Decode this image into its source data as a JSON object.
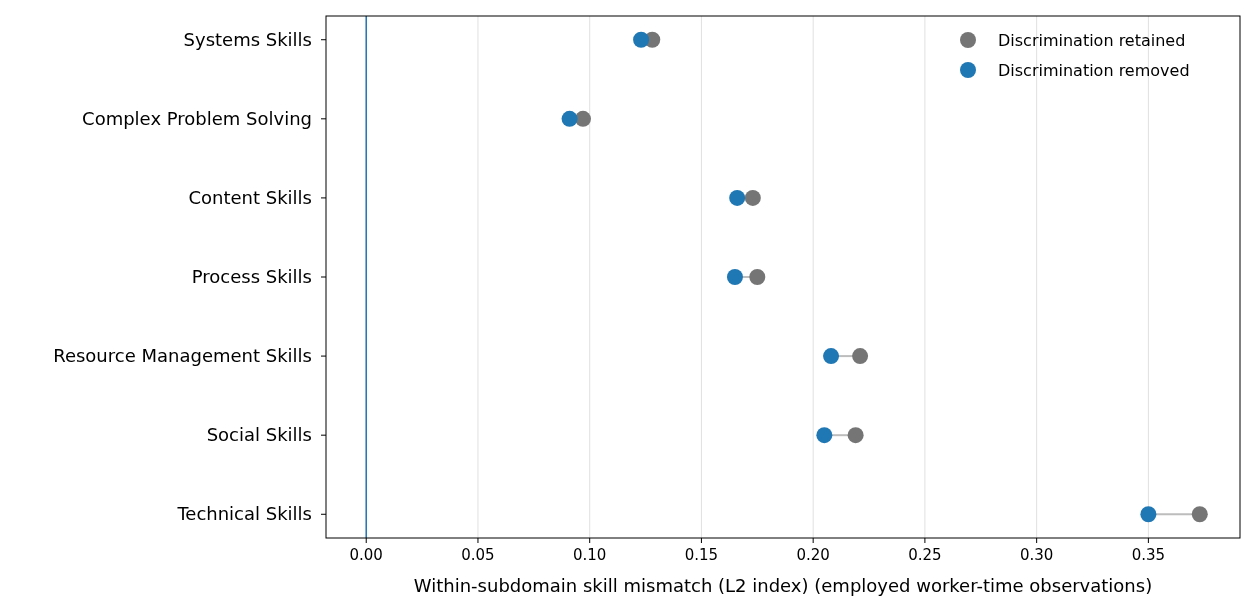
{
  "chart_data": {
    "type": "scatter",
    "orientation": "horizontal",
    "xlabel": "Within-subdomain skill mismatch (L2 index) (employed worker-time observations)",
    "categories": [
      "Systems Skills",
      "Complex Problem Solving",
      "Content Skills",
      "Process Skills",
      "Resource Management Skills",
      "Social Skills",
      "Technical Skills"
    ],
    "series": [
      {
        "name": "Discrimination retained",
        "color": "#757575",
        "values": [
          0.128,
          0.097,
          0.173,
          0.175,
          0.221,
          0.219,
          0.373
        ]
      },
      {
        "name": "Discrimination removed",
        "color": "#1f77b4",
        "values": [
          0.123,
          0.091,
          0.166,
          0.165,
          0.208,
          0.205,
          0.35
        ]
      }
    ],
    "xlim": [
      -0.018,
      0.391
    ],
    "xticks": [
      {
        "value": 0,
        "label": "0.00"
      },
      {
        "value": 0.05,
        "label": "0.05"
      },
      {
        "value": 0.1,
        "label": "0.10"
      },
      {
        "value": 0.15,
        "label": "0.15"
      },
      {
        "value": 0.2,
        "label": "0.20"
      },
      {
        "value": 0.25,
        "label": "0.25"
      },
      {
        "value": 0.3,
        "label": "0.30"
      },
      {
        "value": 0.35,
        "label": "0.35"
      }
    ],
    "ref_lines": [
      {
        "axis": "x",
        "value": 0,
        "color": "#1f77b4"
      }
    ],
    "grid": "x",
    "legend": "top right",
    "marker": "circle"
  }
}
